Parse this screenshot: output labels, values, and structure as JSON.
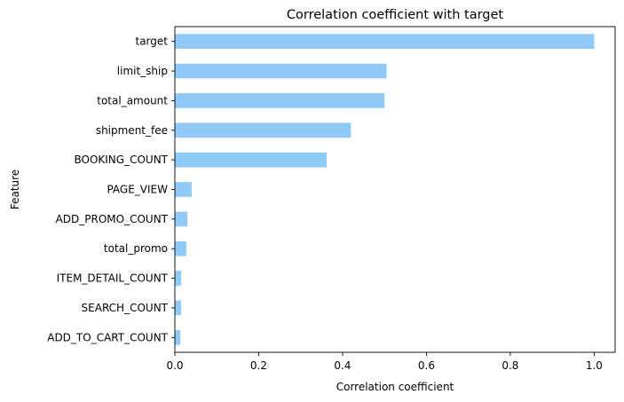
{
  "chart_data": {
    "type": "bar",
    "orientation": "horizontal",
    "title": "Correlation coefficient with target",
    "xlabel": "Correlation coefficient",
    "ylabel": "Feature",
    "xlim": [
      0,
      1.05
    ],
    "xticks": [
      0.0,
      0.2,
      0.4,
      0.6,
      0.8,
      1.0
    ],
    "xtick_labels": [
      "0.0",
      "0.2",
      "0.4",
      "0.6",
      "0.8",
      "1.0"
    ],
    "grid": false,
    "bar_color": "#90caf9",
    "categories": [
      "target",
      "limit_ship",
      "total_amount",
      "shipment_fee",
      "BOOKING_COUNT",
      "PAGE_VIEW",
      "ADD_PROMO_COUNT",
      "total_promo",
      "ITEM_DETAIL_COUNT",
      "SEARCH_COUNT",
      "ADD_TO_CART_COUNT"
    ],
    "values": [
      1.0,
      0.505,
      0.5,
      0.42,
      0.362,
      0.04,
      0.03,
      0.027,
      0.015,
      0.015,
      0.013
    ]
  }
}
